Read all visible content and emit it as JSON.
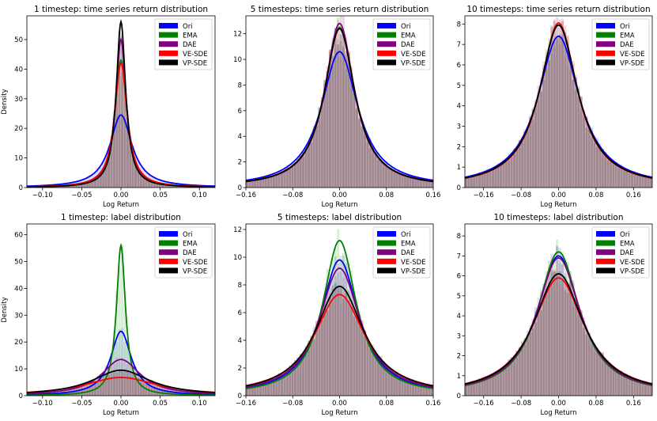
{
  "legend_labels": [
    "Ori",
    "EMA",
    "DAE",
    "VE-SDE",
    "VP-SDE"
  ],
  "colors": {
    "Ori": "#0000ff",
    "EMA": "#008000",
    "DAE": "#800080",
    "VE-SDE": "#ff0000",
    "VP-SDE": "#000000",
    "hist_fill": "#a0487a"
  },
  "chart_data": [
    {
      "type": "area",
      "title": "1 timestep: time series return distribution",
      "xlabel": "Log Return",
      "ylabel": "Density",
      "xlim": [
        -0.12,
        0.12
      ],
      "ylim": [
        0,
        58
      ],
      "xticks": [
        -0.1,
        -0.05,
        0.0,
        0.05,
        0.1
      ],
      "xtick_labels": [
        "−0.10",
        "−0.05",
        "0.00",
        "0.05",
        "0.10"
      ],
      "yticks": [
        0,
        10,
        20,
        30,
        40,
        50
      ],
      "legend": "top-right",
      "series": [
        {
          "name": "Ori",
          "peak": 24.5,
          "width": 0.017
        },
        {
          "name": "EMA",
          "peak": 43,
          "width": 0.0095
        },
        {
          "name": "DAE",
          "peak": 50,
          "width": 0.0082
        },
        {
          "name": "VE-SDE",
          "peak": 42,
          "width": 0.0097
        },
        {
          "name": "VP-SDE",
          "peak": 56,
          "width": 0.0073
        }
      ]
    },
    {
      "type": "area",
      "title": "5 timesteps: time series return distribution",
      "xlabel": "Log Return",
      "ylabel": "",
      "xlim": [
        -0.16,
        0.16
      ],
      "ylim": [
        0,
        13.4
      ],
      "xticks": [
        -0.16,
        -0.08,
        0.0,
        0.08,
        0.16
      ],
      "xtick_labels": [
        "−0.16",
        "−0.08",
        "0.00",
        "0.08",
        "0.16"
      ],
      "yticks": [
        0,
        2,
        4,
        6,
        8,
        10,
        12
      ],
      "legend": "top-right",
      "series": [
        {
          "name": "Ori",
          "peak": 10.6,
          "width": 0.038
        },
        {
          "name": "EMA",
          "peak": 12.5,
          "width": 0.032
        },
        {
          "name": "DAE",
          "peak": 12.8,
          "width": 0.031
        },
        {
          "name": "VE-SDE",
          "peak": 12.4,
          "width": 0.032
        },
        {
          "name": "VP-SDE",
          "peak": 12.4,
          "width": 0.032
        }
      ]
    },
    {
      "type": "area",
      "title": "10 timesteps: time series return distribution",
      "xlabel": "Log Return",
      "ylabel": "",
      "xlim": [
        -0.2,
        0.2
      ],
      "ylim": [
        0,
        8.4
      ],
      "xticks": [
        -0.16,
        -0.08,
        0.0,
        0.08,
        0.16
      ],
      "xtick_labels": [
        "−0.16",
        "−0.08",
        "0.00",
        "0.08",
        "0.16"
      ],
      "yticks": [
        0,
        1,
        2,
        3,
        4,
        5,
        6,
        7,
        8
      ],
      "legend": "top-right",
      "series": [
        {
          "name": "Ori",
          "peak": 7.4,
          "width": 0.054
        },
        {
          "name": "EMA",
          "peak": 7.95,
          "width": 0.05
        },
        {
          "name": "DAE",
          "peak": 7.95,
          "width": 0.05
        },
        {
          "name": "VE-SDE",
          "peak": 8.05,
          "width": 0.049
        },
        {
          "name": "VP-SDE",
          "peak": 7.95,
          "width": 0.05
        }
      ]
    },
    {
      "type": "area",
      "title": "1 timestep: label distribution",
      "xlabel": "Log Return",
      "ylabel": "Density",
      "xlim": [
        -0.12,
        0.12
      ],
      "ylim": [
        0,
        64
      ],
      "xticks": [
        -0.1,
        -0.05,
        0.0,
        0.05,
        0.1
      ],
      "xtick_labels": [
        "−0.10",
        "−0.05",
        "0.00",
        "0.05",
        "0.10"
      ],
      "yticks": [
        0,
        10,
        20,
        30,
        40,
        50,
        60
      ],
      "legend": "top-right",
      "series": [
        {
          "name": "Ori",
          "peak": 24,
          "width": 0.016
        },
        {
          "name": "EMA",
          "peak": 56,
          "width": 0.007
        },
        {
          "name": "DAE",
          "peak": 13.5,
          "width": 0.03
        },
        {
          "name": "VE-SDE",
          "peak": 6.8,
          "width": 0.057
        },
        {
          "name": "VP-SDE",
          "peak": 9.5,
          "width": 0.045
        }
      ]
    },
    {
      "type": "area",
      "title": "5 timesteps: label distribution",
      "xlabel": "Log Return",
      "ylabel": "",
      "xlim": [
        -0.16,
        0.16
      ],
      "ylim": [
        0,
        12.4
      ],
      "xticks": [
        -0.16,
        -0.08,
        0.0,
        0.08,
        0.16
      ],
      "xtick_labels": [
        "−0.16",
        "−0.08",
        "0.00",
        "0.08",
        "0.16"
      ],
      "yticks": [
        0,
        2,
        4,
        6,
        8,
        10,
        12
      ],
      "legend": "top-right",
      "series": [
        {
          "name": "Ori",
          "peak": 9.8,
          "width": 0.04
        },
        {
          "name": "EMA",
          "peak": 11.2,
          "width": 0.035
        },
        {
          "name": "DAE",
          "peak": 9.2,
          "width": 0.043
        },
        {
          "name": "VE-SDE",
          "peak": 7.3,
          "width": 0.053
        },
        {
          "name": "VP-SDE",
          "peak": 7.9,
          "width": 0.05
        }
      ]
    },
    {
      "type": "area",
      "title": "10 timesteps: label distribution",
      "xlabel": "Log Return",
      "ylabel": "",
      "xlim": [
        -0.2,
        0.2
      ],
      "ylim": [
        0,
        8.6
      ],
      "xticks": [
        -0.16,
        -0.08,
        0.0,
        0.08,
        0.16
      ],
      "xtick_labels": [
        "−0.16",
        "−0.08",
        "0.00",
        "0.08",
        "0.16"
      ],
      "yticks": [
        0,
        1,
        2,
        3,
        4,
        5,
        6,
        7,
        8
      ],
      "legend": "top-right",
      "series": [
        {
          "name": "Ori",
          "peak": 7.0,
          "width": 0.057
        },
        {
          "name": "EMA",
          "peak": 7.2,
          "width": 0.055
        },
        {
          "name": "DAE",
          "peak": 6.9,
          "width": 0.058
        },
        {
          "name": "VE-SDE",
          "peak": 5.9,
          "width": 0.067
        },
        {
          "name": "VP-SDE",
          "peak": 6.1,
          "width": 0.065
        }
      ]
    }
  ]
}
